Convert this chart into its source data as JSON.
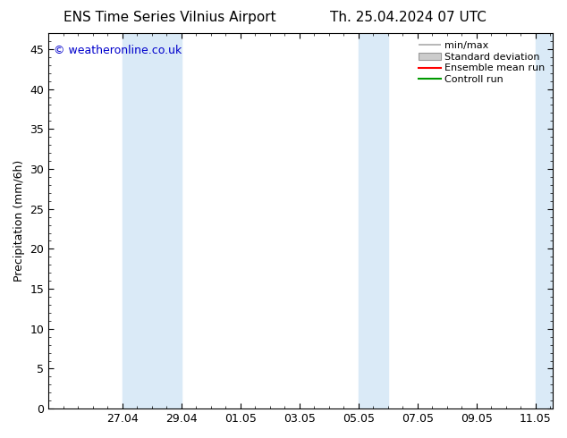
{
  "title_left": "ENS Time Series Vilnius Airport",
  "title_right": "Th. 25.04.2024 07 UTC",
  "ylabel": "Precipitation (mm/6h)",
  "ylim": [
    0,
    47
  ],
  "yticks": [
    0,
    5,
    10,
    15,
    20,
    25,
    30,
    35,
    40,
    45
  ],
  "background_color": "#ffffff",
  "plot_bg_color": "#ffffff",
  "watermark": "© weatheronline.co.uk",
  "watermark_color": "#0000cc",
  "legend_labels": [
    "min/max",
    "Standard deviation",
    "Ensemble mean run",
    "Controll run"
  ],
  "legend_line_colors": [
    "#aaaaaa",
    "#cccccc",
    "#ff0000",
    "#009900"
  ],
  "x_tick_labels": [
    "27.04",
    "29.04",
    "01.05",
    "03.05",
    "05.05",
    "07.05",
    "09.05",
    "11.05"
  ],
  "shaded_band_color": "#daeaf7",
  "font_family": "DejaVu Sans",
  "title_fontsize": 11,
  "axis_label_fontsize": 9,
  "tick_fontsize": 9,
  "legend_fontsize": 8
}
